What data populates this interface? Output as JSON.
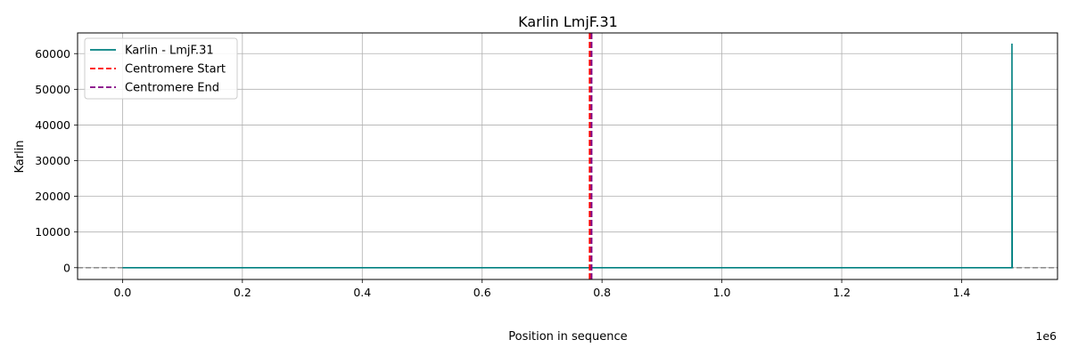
{
  "chart_data": {
    "type": "line",
    "title": "Karlin LmjF.31",
    "xlabel": "Position in sequence",
    "ylabel": "Karlin",
    "x_offset_text": "1e6",
    "xlim": [
      -75000,
      1560000
    ],
    "ylim": [
      -3300,
      65800
    ],
    "xticks": [
      0,
      200000,
      400000,
      600000,
      800000,
      1000000,
      1200000,
      1400000
    ],
    "xtick_labels": [
      "0.0",
      "0.2",
      "0.4",
      "0.6",
      "0.8",
      "1.0",
      "1.2",
      "1.4"
    ],
    "yticks": [
      0,
      10000,
      20000,
      30000,
      40000,
      50000,
      60000
    ],
    "ytick_labels": [
      "0",
      "10000",
      "20000",
      "30000",
      "40000",
      "50000",
      "60000"
    ],
    "grid": true,
    "legend_position": "top-left",
    "series": [
      {
        "name": "Karlin - LmjF.31",
        "color": "#008080",
        "x": [
          0,
          1484000,
          1484000,
          1484500
        ],
        "y": [
          0,
          0,
          62800,
          0
        ]
      }
    ],
    "vlines": [
      {
        "name": "Centromere Start",
        "x": 779500,
        "color": "#ff0000",
        "style": "dashed"
      },
      {
        "name": "Centromere End",
        "x": 782500,
        "color": "#800080",
        "style": "dashed"
      }
    ],
    "hline": {
      "y": 0,
      "color": "#808080",
      "style": "dashed"
    }
  }
}
